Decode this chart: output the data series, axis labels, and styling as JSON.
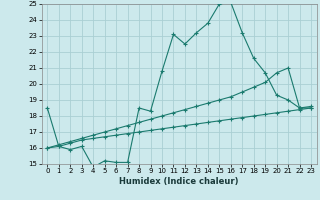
{
  "xlabel": "Humidex (Indice chaleur)",
  "xlim": [
    -0.5,
    23.5
  ],
  "ylim": [
    15,
    25
  ],
  "xticks": [
    0,
    1,
    2,
    3,
    4,
    5,
    6,
    7,
    8,
    9,
    10,
    11,
    12,
    13,
    14,
    15,
    16,
    17,
    18,
    19,
    20,
    21,
    22,
    23
  ],
  "yticks": [
    15,
    16,
    17,
    18,
    19,
    20,
    21,
    22,
    23,
    24,
    25
  ],
  "bg_color": "#cce9ec",
  "grid_color": "#aacfd4",
  "line_color": "#1a7a6e",
  "line1_x": [
    0,
    1,
    2,
    3,
    4,
    5,
    6,
    7,
    8,
    9,
    10,
    11,
    12,
    13,
    14,
    15,
    16,
    17,
    18,
    19,
    20,
    21,
    22,
    23
  ],
  "line1_y": [
    18.5,
    16.1,
    15.9,
    16.1,
    14.8,
    15.2,
    15.1,
    15.1,
    18.5,
    18.3,
    20.8,
    23.1,
    22.5,
    23.2,
    23.8,
    25.0,
    25.1,
    23.2,
    21.6,
    20.7,
    19.3,
    19.0,
    18.5,
    18.5
  ],
  "line2_x": [
    0,
    1,
    2,
    3,
    4,
    5,
    6,
    7,
    8,
    9,
    10,
    11,
    12,
    13,
    14,
    15,
    16,
    17,
    18,
    19,
    20,
    21,
    22,
    23
  ],
  "line2_y": [
    16.0,
    16.2,
    16.4,
    16.6,
    16.8,
    17.0,
    17.2,
    17.4,
    17.6,
    17.8,
    18.0,
    18.2,
    18.4,
    18.6,
    18.8,
    19.0,
    19.2,
    19.5,
    19.8,
    20.1,
    20.7,
    21.0,
    18.5,
    18.6
  ],
  "line3_x": [
    0,
    1,
    2,
    3,
    4,
    5,
    6,
    7,
    8,
    9,
    10,
    11,
    12,
    13,
    14,
    15,
    16,
    17,
    18,
    19,
    20,
    21,
    22,
    23
  ],
  "line3_y": [
    16.0,
    16.1,
    16.3,
    16.5,
    16.6,
    16.7,
    16.8,
    16.9,
    17.0,
    17.1,
    17.2,
    17.3,
    17.4,
    17.5,
    17.6,
    17.7,
    17.8,
    17.9,
    18.0,
    18.1,
    18.2,
    18.3,
    18.4,
    18.5
  ]
}
